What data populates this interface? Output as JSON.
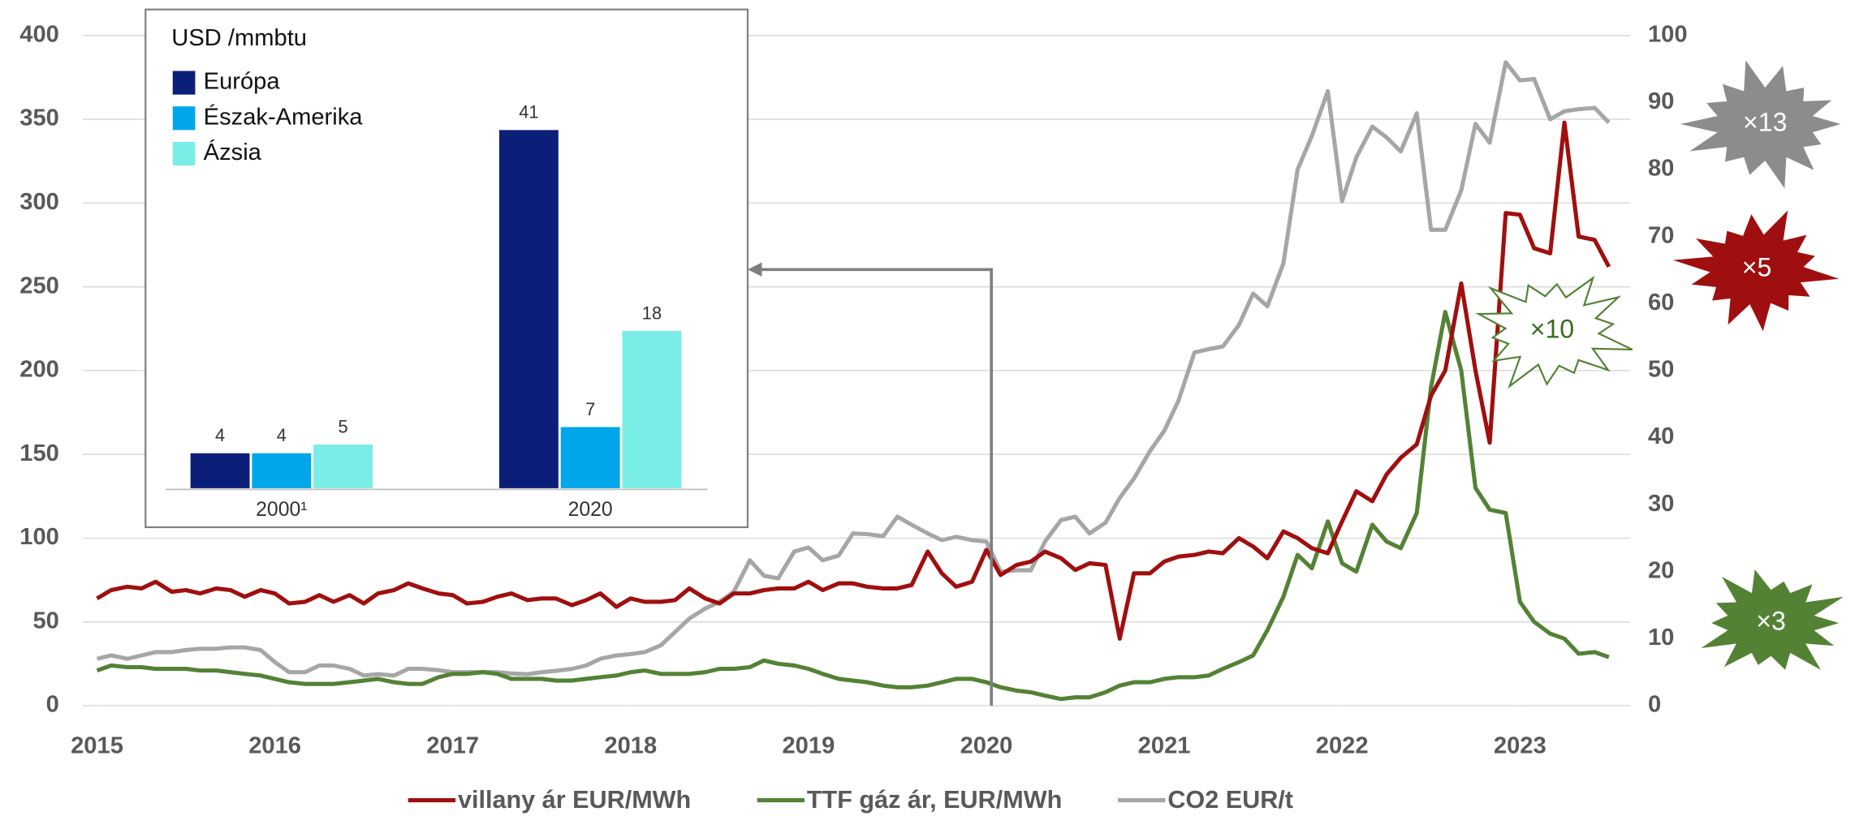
{
  "chart_data": [
    {
      "type": "line",
      "x": [
        2015.0,
        2015.08,
        2015.17,
        2015.25,
        2015.33,
        2015.42,
        2015.5,
        2015.58,
        2015.67,
        2015.75,
        2015.83,
        2015.92,
        2016.0,
        2016.08,
        2016.17,
        2016.25,
        2016.33,
        2016.42,
        2016.5,
        2016.58,
        2016.67,
        2016.75,
        2016.83,
        2016.92,
        2017.0,
        2017.08,
        2017.17,
        2017.25,
        2017.33,
        2017.42,
        2017.5,
        2017.58,
        2017.67,
        2017.75,
        2017.83,
        2017.92,
        2018.0,
        2018.08,
        2018.17,
        2018.25,
        2018.33,
        2018.42,
        2018.5,
        2018.58,
        2018.67,
        2018.75,
        2018.83,
        2018.92,
        2019.0,
        2019.08,
        2019.17,
        2019.25,
        2019.33,
        2019.42,
        2019.5,
        2019.58,
        2019.67,
        2019.75,
        2019.83,
        2019.92,
        2020.0,
        2020.08,
        2020.17,
        2020.25,
        2020.33,
        2020.42,
        2020.5,
        2020.58,
        2020.67,
        2020.75,
        2020.83,
        2020.92,
        2021.0,
        2021.08,
        2021.17,
        2021.25,
        2021.33,
        2021.42,
        2021.5,
        2021.58,
        2021.67,
        2021.75,
        2021.83,
        2021.92,
        2022.0,
        2022.08,
        2022.17,
        2022.25,
        2022.33,
        2022.42,
        2022.5,
        2022.58,
        2022.67,
        2022.75,
        2022.83,
        2022.92,
        2023.0,
        2023.08,
        2023.17,
        2023.25,
        2023.33,
        2023.42,
        2023.5
      ],
      "series": [
        {
          "name": "villany ár EUR/MWh",
          "color": "#a00f0f",
          "values": [
            64,
            69,
            71,
            70,
            74,
            68,
            69,
            67,
            70,
            69,
            65,
            69,
            67,
            61,
            62,
            66,
            62,
            66,
            61,
            67,
            69,
            73,
            70,
            67,
            66,
            61,
            62,
            65,
            67,
            63,
            64,
            64,
            60,
            63,
            67,
            59,
            64,
            62,
            62,
            63,
            70,
            64,
            61,
            67,
            67,
            69,
            70,
            70,
            74,
            69,
            73,
            73,
            71,
            70,
            70,
            72,
            92,
            79,
            71,
            74,
            93,
            78,
            84,
            86,
            92,
            88,
            81,
            85,
            84,
            40,
            79,
            79,
            86,
            89,
            90,
            92,
            91,
            100,
            95,
            88,
            104,
            100,
            94,
            91,
            110,
            128,
            122,
            138,
            148,
            156,
            185,
            200,
            252,
            200,
            157,
            294,
            293,
            273,
            270,
            348,
            280,
            278,
            262
          ]
        },
        {
          "name": "TTF gáz ár, EUR/MWh",
          "color": "#548235",
          "values": [
            21,
            24,
            23,
            23,
            22,
            22,
            22,
            21,
            21,
            20,
            19,
            18,
            16,
            14,
            13,
            13,
            13,
            14,
            15,
            16,
            14,
            13,
            13,
            17,
            19,
            19,
            20,
            19,
            16,
            16,
            16,
            15,
            15,
            16,
            17,
            18,
            20,
            21,
            19,
            19,
            19,
            20,
            22,
            22,
            23,
            27,
            25,
            24,
            22,
            19,
            16,
            15,
            14,
            12,
            11,
            11,
            12,
            14,
            16,
            16,
            14,
            11,
            9,
            8,
            6,
            4,
            5,
            5,
            8,
            12,
            14,
            14,
            16,
            17,
            17,
            18,
            22,
            26,
            30,
            45,
            65,
            90,
            82,
            110,
            85,
            80,
            108,
            98,
            94,
            115,
            190,
            235,
            200,
            130,
            117,
            115,
            62,
            50,
            43,
            40,
            31,
            32,
            29
          ]
        },
        {
          "name": "CO2 EUR/t",
          "color": "#a6a6a6",
          "axis": "y2",
          "values": [
            7,
            7.5,
            7,
            7.5,
            8,
            8,
            8.3,
            8.5,
            8.5,
            8.7,
            8.7,
            8.3,
            6.5,
            5,
            5,
            6,
            6,
            5.5,
            4.5,
            4.7,
            4.5,
            5.5,
            5.5,
            5.3,
            5,
            5,
            5,
            5,
            4.8,
            4.7,
            5,
            5.2,
            5.5,
            6,
            7,
            7.5,
            7.7,
            8,
            9,
            11,
            13,
            14.5,
            15.5,
            17,
            21.7,
            19.4,
            19,
            23,
            23.6,
            21.7,
            22.4,
            25.7,
            25.6,
            25.3,
            28.2,
            27,
            25.7,
            24.7,
            25.2,
            24.7,
            24.5,
            20,
            20.2,
            20.2,
            24.5,
            27.7,
            28.2,
            25.7,
            27.3,
            31,
            33.9,
            38,
            41,
            45.5,
            52.7,
            53.2,
            53.6,
            56.8,
            61.5,
            59.6,
            66,
            80,
            85,
            91.7,
            75.3,
            81.8,
            86.4,
            84.8,
            82.7,
            88.4,
            71,
            71,
            76.9,
            86.8,
            84,
            96,
            93.3,
            93.5,
            87.5,
            88.7,
            89,
            89.2,
            87
          ]
        }
      ],
      "xlim": [
        2015,
        2023.62
      ],
      "xticks": [
        2015,
        2016,
        2017,
        2018,
        2019,
        2020,
        2021,
        2022,
        2023
      ],
      "ylim": [
        0,
        400
      ],
      "yticks": [
        0,
        50,
        100,
        150,
        200,
        250,
        300,
        350,
        400
      ],
      "y2lim": [
        0,
        100
      ],
      "y2ticks": [
        0,
        10,
        20,
        30,
        40,
        50,
        60,
        70,
        80,
        90,
        100
      ],
      "grid": true,
      "legend": "bottom",
      "annotations": [
        "×13",
        "×5",
        "×10",
        "×3"
      ]
    },
    {
      "type": "bar",
      "title": "USD /mmbtu",
      "categories": [
        "2000¹",
        "2020"
      ],
      "series": [
        {
          "name": "Európa",
          "color": "#0b1f78",
          "values": [
            4,
            41
          ]
        },
        {
          "name": "Észak-Amerika",
          "color": "#00a6ea",
          "values": [
            4,
            7
          ]
        },
        {
          "name": "Ázsia",
          "color": "#7aede6",
          "values": [
            5,
            18
          ]
        }
      ]
    }
  ]
}
